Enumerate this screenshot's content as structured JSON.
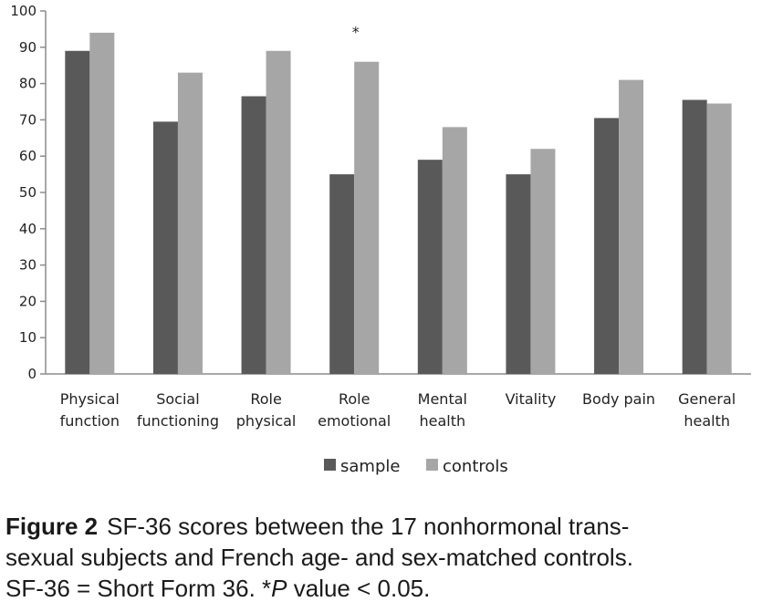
{
  "chart_data": {
    "type": "bar",
    "categories": [
      [
        "Physical",
        "function"
      ],
      [
        "Social",
        "functioning"
      ],
      [
        "Role",
        "physical"
      ],
      [
        "Role",
        "emotional"
      ],
      [
        "Mental",
        "health"
      ],
      [
        "Vitality"
      ],
      [
        "Body pain"
      ],
      [
        "General",
        "health"
      ]
    ],
    "series": [
      {
        "name": "sample",
        "color": "#595959",
        "values": [
          89,
          69.5,
          76.5,
          55,
          59,
          55,
          70.5,
          75.5
        ]
      },
      {
        "name": "controls",
        "color": "#a6a6a6",
        "values": [
          94,
          83,
          89,
          86,
          68,
          62,
          81,
          74.5
        ]
      }
    ],
    "ylim": [
      0,
      100
    ],
    "yticks": [
      0,
      10,
      20,
      30,
      40,
      50,
      60,
      70,
      80,
      90,
      100
    ],
    "grid": false,
    "legend_position": "bottom",
    "annotations": [
      {
        "text": "*",
        "category_index": 3,
        "series_index": 1
      }
    ]
  },
  "caption": {
    "figure_label": "Figure 2",
    "line1": "SF-36 scores between the 17 nonhormonal trans-",
    "line2": "sexual subjects and French age- and sex-matched controls.",
    "line3_a": "SF-36 = Short Form 36. *",
    "line3_p": "P",
    "line3_b": " value < 0.05."
  }
}
